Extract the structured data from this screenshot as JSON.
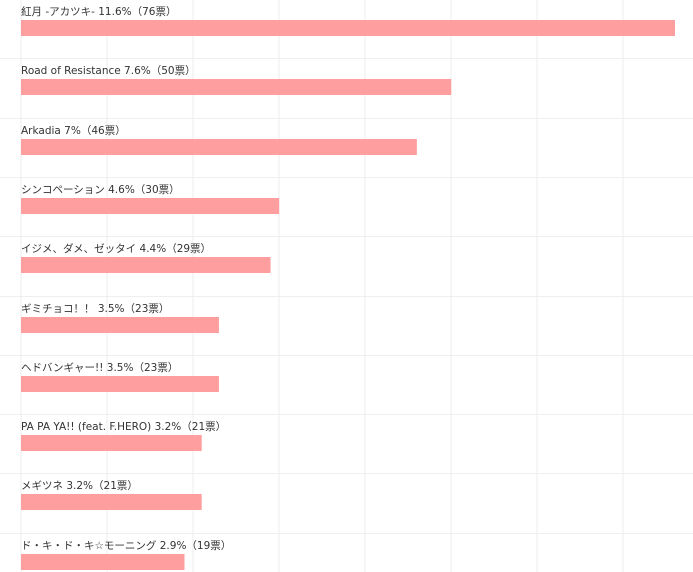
{
  "chart_data": {
    "type": "bar",
    "orientation": "horizontal",
    "grid": true,
    "bar_color": "#ff9e9e",
    "grid_color": "#eeeeee",
    "bars": [
      {
        "label": "紅月 -アカツキ- 11.6%（76票）",
        "value": 76
      },
      {
        "label": "Road of Resistance 7.6%（50票）",
        "value": 50
      },
      {
        "label": "Arkadia 7%（46票）",
        "value": 46
      },
      {
        "label": "シンコペーション 4.6%（30票）",
        "value": 30
      },
      {
        "label": "イジメ、ダメ、ゼッタイ 4.4%（29票）",
        "value": 29
      },
      {
        "label": "ギミチョコ！！ 3.5%（23票）",
        "value": 23
      },
      {
        "label": "ヘドバンギャー!! 3.5%（23票）",
        "value": 23
      },
      {
        "label": "PA PA YA!! (feat. F.HERO) 3.2%（21票）",
        "value": 21
      },
      {
        "label": "メギツネ 3.2%（21票）",
        "value": 21
      },
      {
        "label": "ド・キ・ド・キ☆モーニング 2.9%（19票）",
        "value": 19
      }
    ]
  }
}
